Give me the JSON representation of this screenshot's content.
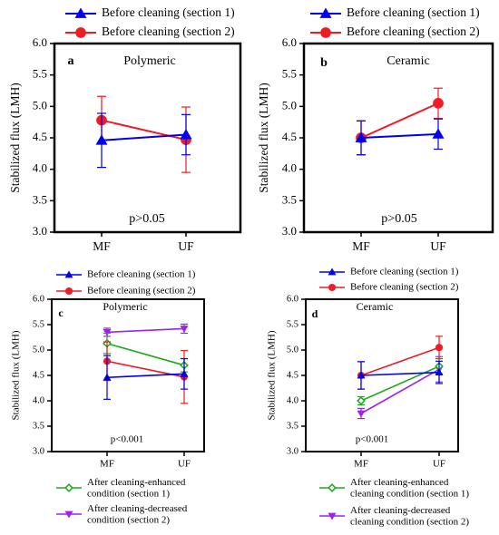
{
  "chart_data": [
    {
      "type": "line",
      "panel_label": "a",
      "title": "Polymeric",
      "xlabel": "",
      "ylabel": "Stabilized flux (LMH)",
      "categories": [
        "MF",
        "UF"
      ],
      "ylim": [
        3.0,
        6.0
      ],
      "yticks": [
        "3.0",
        "3.5",
        "4.0",
        "4.5",
        "5.0",
        "5.5",
        "6.0"
      ],
      "annotation": "p>0.05",
      "legend_position": "top",
      "series": [
        {
          "name": "Before cleaning (section 1)",
          "color": "#0000ee",
          "marker": "triangle-up",
          "values": [
            4.46,
            4.55
          ],
          "errors": [
            0.43,
            0.32
          ]
        },
        {
          "name": "Before cleaning (section 2)",
          "color": "#ee1c25",
          "marker": "circle",
          "values": [
            4.78,
            4.47
          ],
          "errors": [
            0.38,
            0.52
          ]
        }
      ]
    },
    {
      "type": "line",
      "panel_label": "b",
      "title": "Ceramic",
      "xlabel": "",
      "ylabel": "Stabilized flux (LMH)",
      "categories": [
        "MF",
        "UF"
      ],
      "ylim": [
        3.0,
        6.0
      ],
      "yticks": [
        "3.0",
        "3.5",
        "4.0",
        "4.5",
        "5.0",
        "5.5",
        "6.0"
      ],
      "annotation": "p>0.05",
      "legend_position": "top",
      "series": [
        {
          "name": "Before cleaning (section 1)",
          "color": "#0000ee",
          "marker": "triangle-up",
          "values": [
            4.5,
            4.56
          ],
          "errors": [
            0.27,
            0.24
          ]
        },
        {
          "name": "Before cleaning (section 2)",
          "color": "#ee1c25",
          "marker": "circle",
          "values": [
            4.5,
            5.05
          ],
          "errors": [
            0.27,
            0.24
          ]
        }
      ]
    },
    {
      "type": "line",
      "panel_label": "c",
      "title": "Polymeric",
      "xlabel": "",
      "ylabel": "Stabilized flux (LMH)",
      "categories": [
        "MF",
        "UF"
      ],
      "ylim": [
        3.0,
        6.0
      ],
      "yticks": [
        "3.0",
        "3.5",
        "4.0",
        "4.5",
        "5.0",
        "5.5",
        "6.0"
      ],
      "annotation": "p<0.001",
      "legend_position": "top and bottom",
      "series": [
        {
          "name": "Before cleaning (section 1)",
          "color": "#0000ee",
          "marker": "triangle-up",
          "values": [
            4.46,
            4.53
          ],
          "errors": [
            0.43,
            0.3
          ]
        },
        {
          "name": "Before cleaning (section 2)",
          "color": "#ee1c25",
          "marker": "circle",
          "values": [
            4.78,
            4.47
          ],
          "errors": [
            0.38,
            0.52
          ]
        },
        {
          "name": "After cleaning-enhanced condition (section 1)",
          "color": "#1aaa1a",
          "marker": "diamond-open",
          "values": [
            5.13,
            4.7
          ],
          "errors": [
            0.2,
            0.13
          ]
        },
        {
          "name": "After cleaning-decreased condition (section 2)",
          "color": "#a020f0",
          "marker": "triangle-down",
          "values": [
            5.35,
            5.42
          ],
          "errors": [
            0.08,
            0.09
          ]
        }
      ]
    },
    {
      "type": "line",
      "panel_label": "d",
      "title": "Ceramic",
      "xlabel": "",
      "ylabel": "Stabilized flux (LMH)",
      "categories": [
        "MF",
        "UF"
      ],
      "ylim": [
        3.0,
        6.0
      ],
      "yticks": [
        "3.0",
        "3.5",
        "4.0",
        "4.5",
        "5.0",
        "5.5",
        "6.0"
      ],
      "annotation": "p<0.001",
      "legend_position": "top and bottom",
      "series": [
        {
          "name": "Before cleaning (section 1)",
          "color": "#0000ee",
          "marker": "triangle-up",
          "values": [
            4.5,
            4.56
          ],
          "errors": [
            0.27,
            0.22
          ]
        },
        {
          "name": "Before cleaning (section 2)",
          "color": "#ee1c25",
          "marker": "circle",
          "values": [
            4.5,
            5.05
          ],
          "errors": [
            0.27,
            0.22
          ]
        },
        {
          "name": "After cleaning-enhanced cleaning condition (section 1)",
          "color": "#1aaa1a",
          "marker": "diamond-open",
          "values": [
            4.0,
            4.68
          ],
          "errors": [
            0.08,
            0.15
          ]
        },
        {
          "name": "After cleaning-decreased cleaning condition (section 2)",
          "color": "#a020f0",
          "marker": "triangle-down",
          "values": [
            3.75,
            4.62
          ],
          "errors": [
            0.1,
            0.25
          ]
        }
      ]
    }
  ]
}
